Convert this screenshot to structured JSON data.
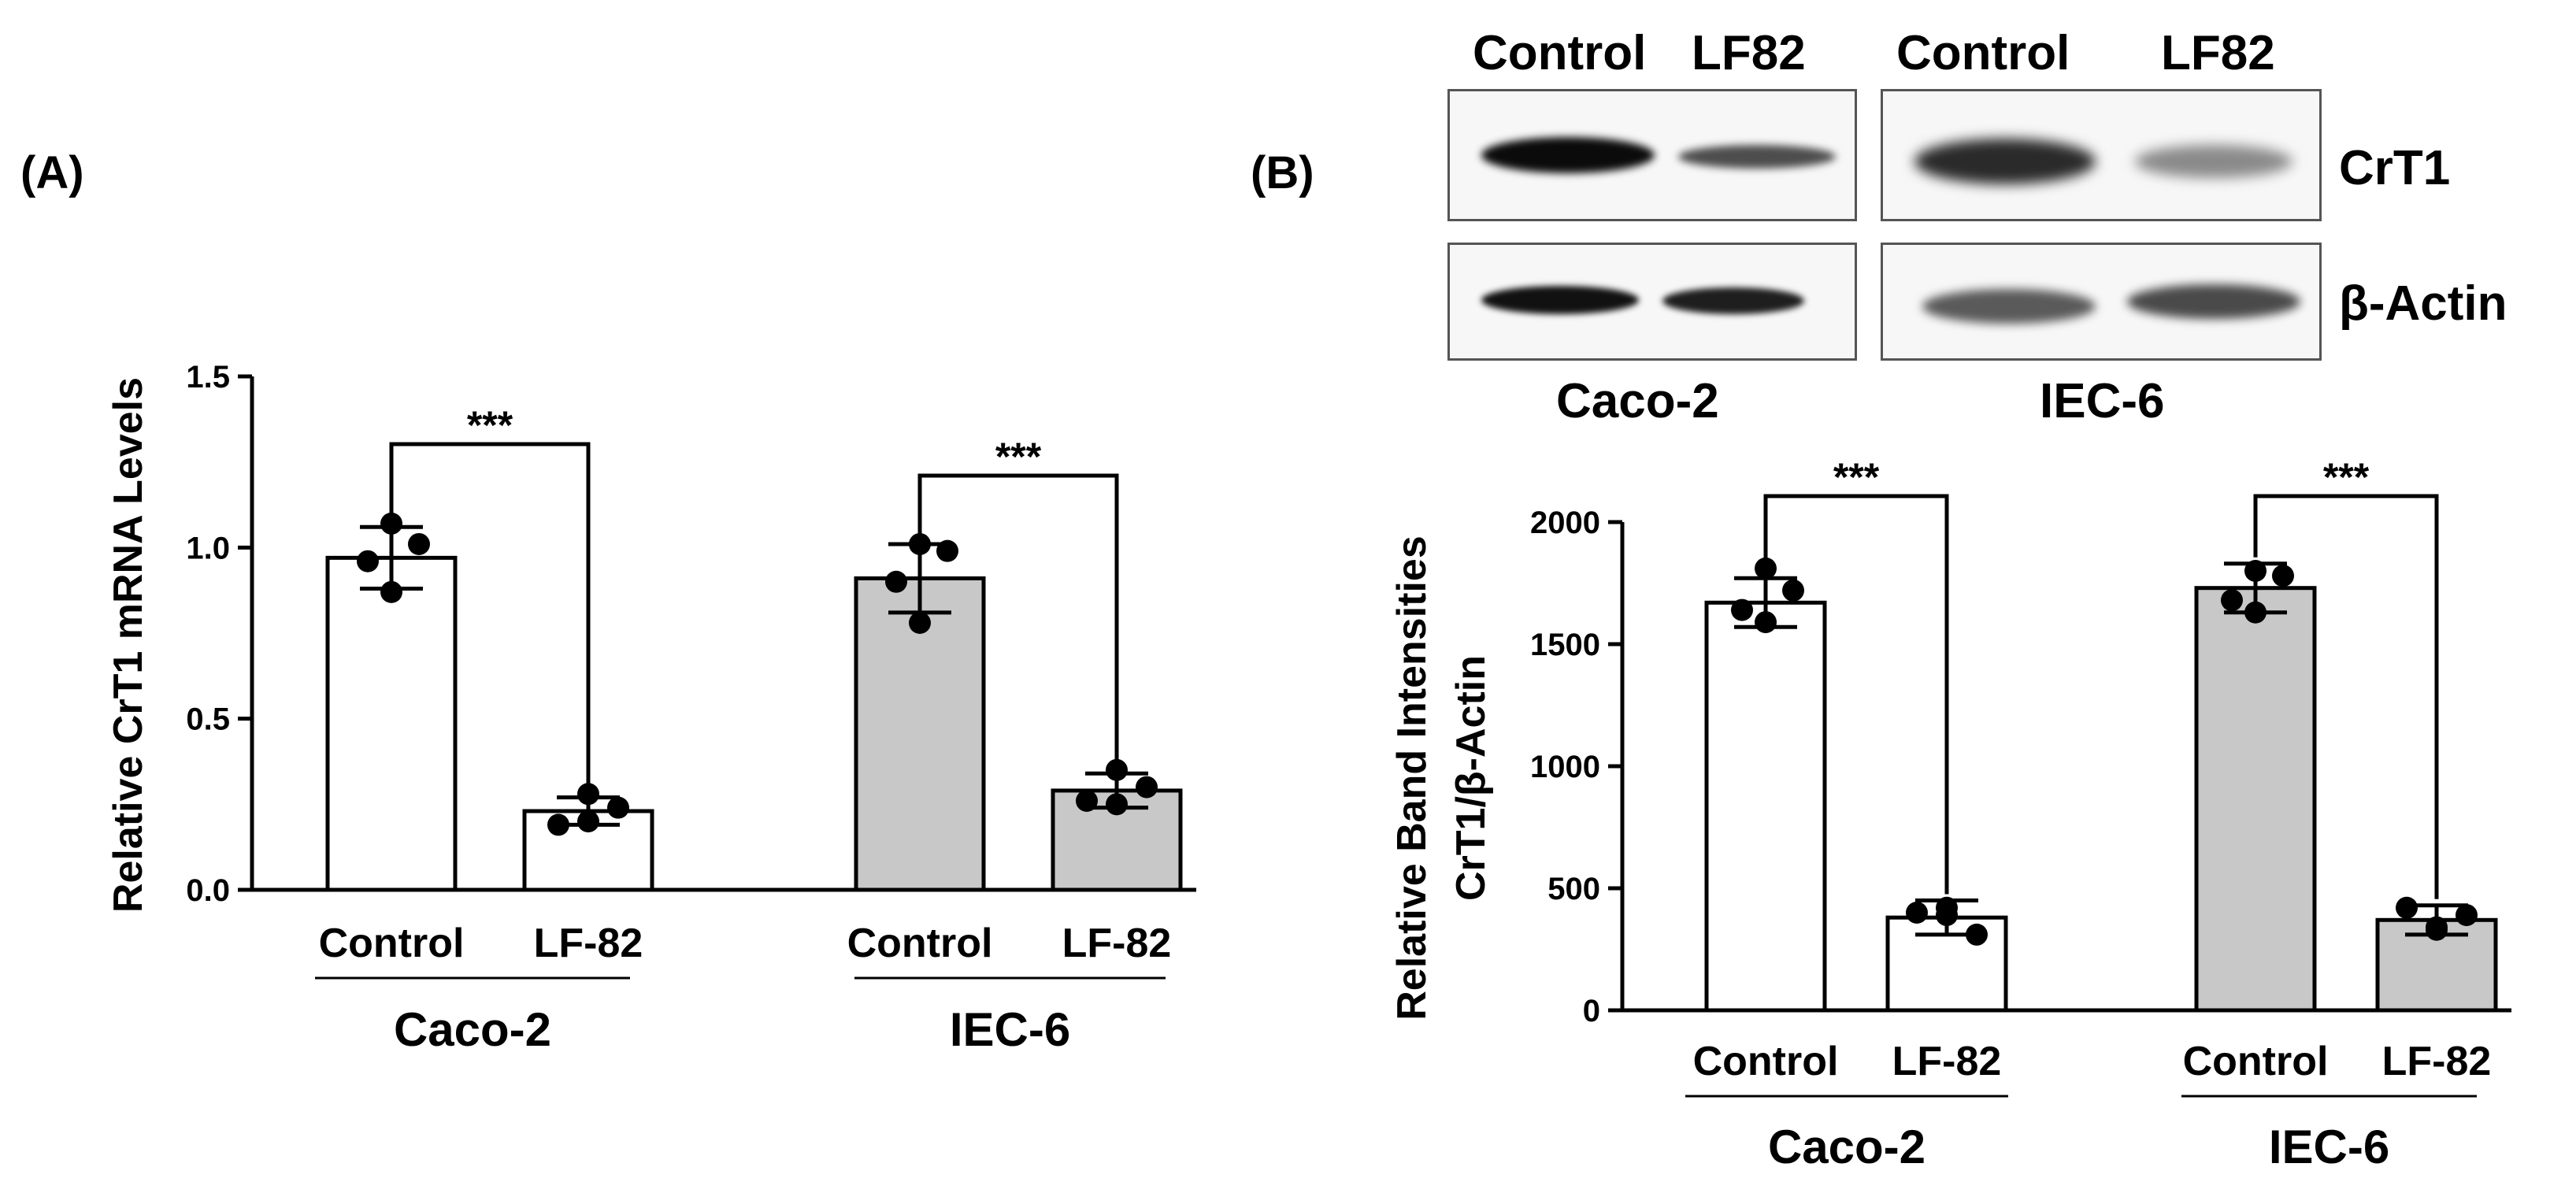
{
  "panel_labels": {
    "a": "(A)",
    "b": "(B)"
  },
  "western_blot": {
    "lane_labels": [
      "Control",
      "LF82",
      "Control",
      "LF82"
    ],
    "row_labels": [
      "CrT1",
      "β-Actin"
    ],
    "cell_lines": [
      "Caco-2",
      "IEC-6"
    ]
  },
  "chart_data": [
    {
      "type": "bar",
      "panel": "A",
      "title": "",
      "xlabel": "",
      "ylabel": "Relative CrT1 mRNA Levels",
      "ylim": [
        0,
        1.5
      ],
      "yticks": [
        "0.0",
        "0.5",
        "1.0",
        "1.5"
      ],
      "categories": [
        "Control",
        "LF-82",
        "Control",
        "LF-82"
      ],
      "groups": [
        "Caco-2",
        "IEC-6"
      ],
      "values": [
        0.97,
        0.23,
        0.91,
        0.29
      ],
      "errors": [
        0.09,
        0.04,
        0.1,
        0.05
      ],
      "points": [
        [
          1.07,
          1.01,
          0.96,
          0.87
        ],
        [
          0.19,
          0.2,
          0.24,
          0.28
        ],
        [
          1.01,
          0.99,
          0.9,
          0.78
        ],
        [
          0.26,
          0.25,
          0.3,
          0.35
        ]
      ],
      "bar_colors": [
        "#ffffff",
        "#ffffff",
        "#c8c8c8",
        "#c8c8c8"
      ],
      "significance": [
        {
          "pair": [
            0,
            1
          ],
          "label": "***"
        },
        {
          "pair": [
            2,
            3
          ],
          "label": "***"
        }
      ]
    },
    {
      "type": "bar",
      "panel": "B",
      "title": "",
      "xlabel": "",
      "ylabel": "Relative Band Intensities",
      "ylabel2": "CrT1/β-Actin",
      "ylim": [
        0,
        2000
      ],
      "yticks": [
        "0",
        "500",
        "1000",
        "1500",
        "2000"
      ],
      "categories": [
        "Control",
        "LF-82",
        "Control",
        "LF-82"
      ],
      "groups": [
        "Caco-2",
        "IEC-6"
      ],
      "values": [
        1670,
        380,
        1730,
        370
      ],
      "errors": [
        100,
        70,
        100,
        60
      ],
      "points": [
        [
          1810,
          1720,
          1640,
          1590
        ],
        [
          400,
          420,
          310,
          390
        ],
        [
          1800,
          1780,
          1680,
          1630
        ],
        [
          420,
          340,
          390,
          330
        ]
      ],
      "bar_colors": [
        "#ffffff",
        "#ffffff",
        "#c8c8c8",
        "#c8c8c8"
      ],
      "significance": [
        {
          "pair": [
            0,
            1
          ],
          "label": "***"
        },
        {
          "pair": [
            2,
            3
          ],
          "label": "***"
        }
      ]
    }
  ]
}
